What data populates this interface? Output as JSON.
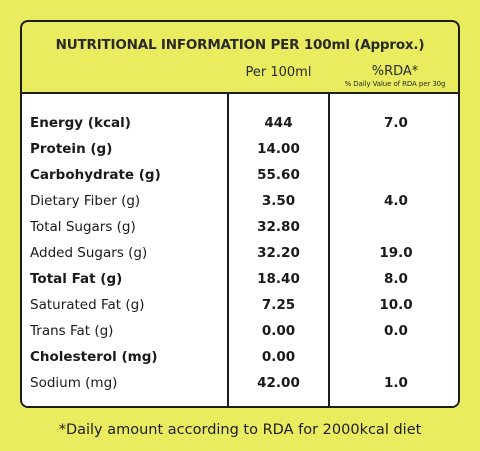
{
  "label": {
    "title": "NUTRITIONAL INFORMATION PER 100ml (Approx.)",
    "col_per": "Per 100ml",
    "col_rda": "%RDA*",
    "col_rda_sub": "% Daily Value of RDA per 30g",
    "rows": [
      {
        "name": "Energy (kcal)",
        "value": "444",
        "rda": "7.0",
        "bold": true
      },
      {
        "name": "Protein (g)",
        "value": "14.00",
        "rda": "",
        "bold": true
      },
      {
        "name": "Carbohydrate (g)",
        "value": "55.60",
        "rda": "",
        "bold": true
      },
      {
        "name": "Dietary Fiber (g)",
        "value": "3.50",
        "rda": "4.0",
        "bold": false
      },
      {
        "name": "Total Sugars (g)",
        "value": "32.80",
        "rda": "",
        "bold": false
      },
      {
        "name": "Added Sugars (g)",
        "value": "32.20",
        "rda": "19.0",
        "bold": false
      },
      {
        "name": "Total Fat (g)",
        "value": "18.40",
        "rda": "8.0",
        "bold": true
      },
      {
        "name": "Saturated Fat (g)",
        "value": "7.25",
        "rda": "10.0",
        "bold": false
      },
      {
        "name": "Trans Fat (g)",
        "value": "0.00",
        "rda": "0.0",
        "bold": false
      },
      {
        "name": "Cholesterol (mg)",
        "value": "0.00",
        "rda": "",
        "bold": true
      },
      {
        "name": "Sodium (mg)",
        "value": "42.00",
        "rda": "1.0",
        "bold": false
      }
    ],
    "footnote": "*Daily amount according to RDA for 2000kcal diet"
  },
  "colors": {
    "background": "#e8ec5e",
    "table_fill": "#ffffff",
    "border": "#1e1e1e"
  }
}
